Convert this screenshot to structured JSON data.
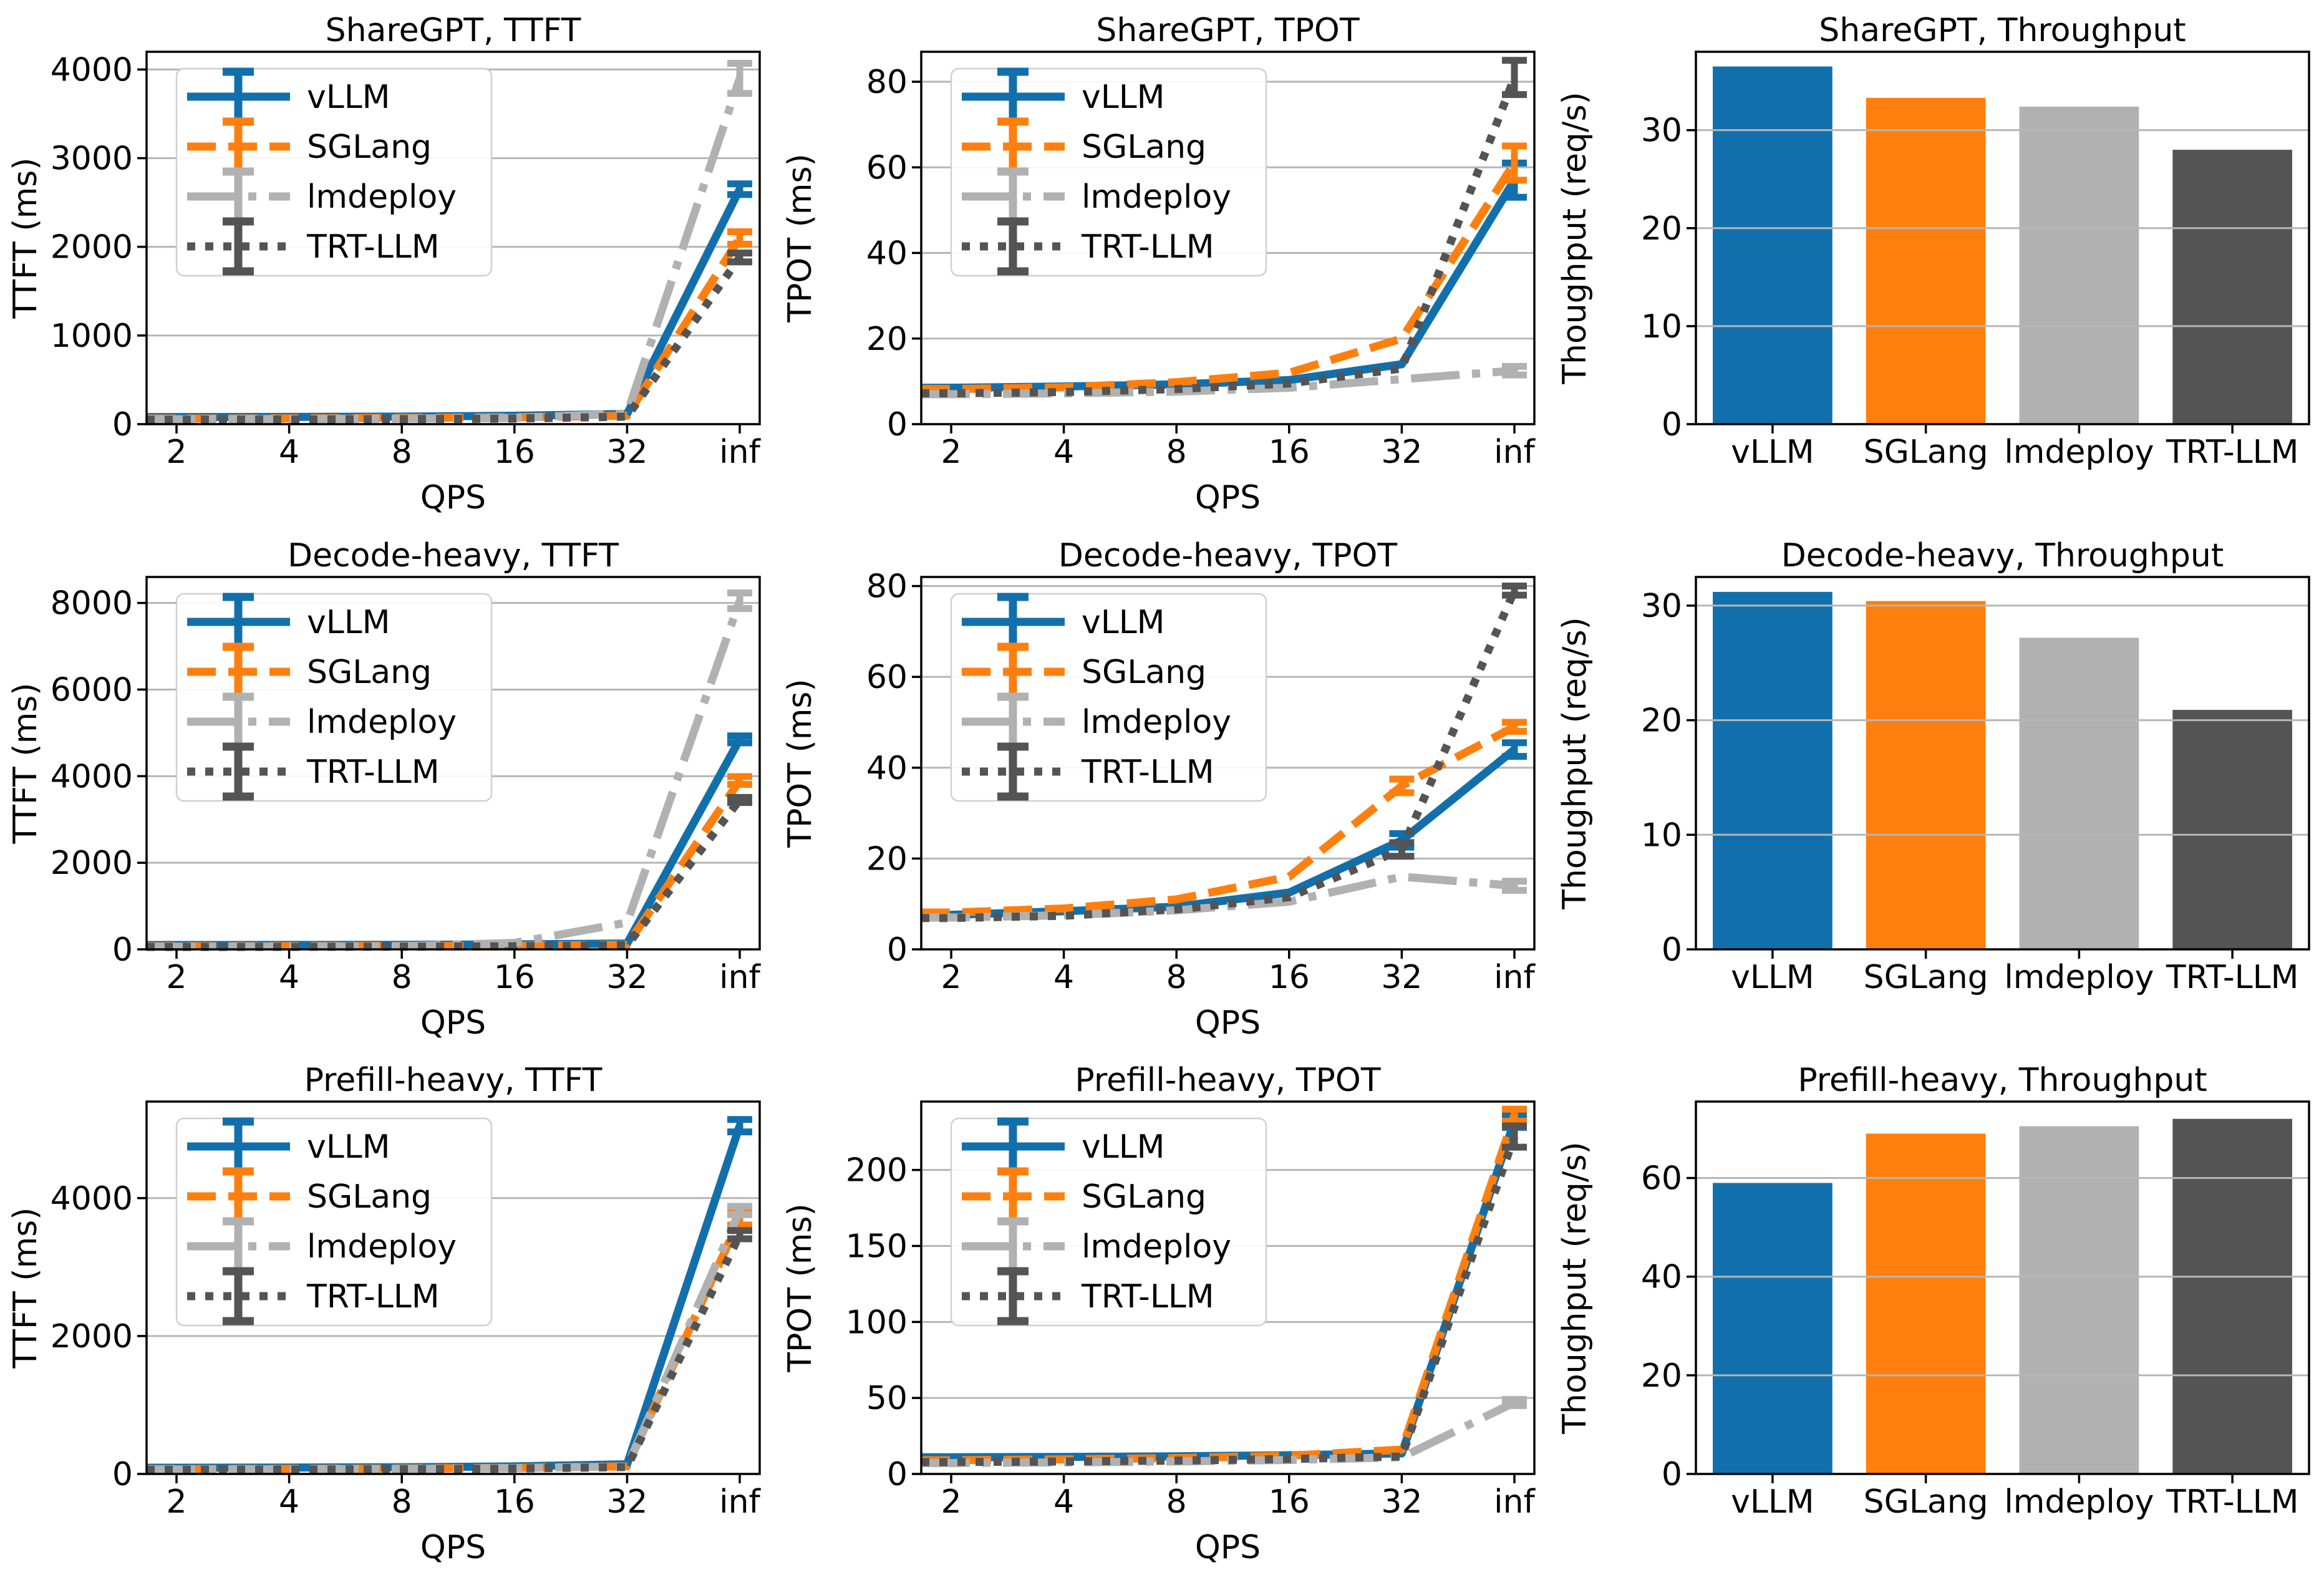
{
  "styles": {
    "series": [
      {
        "id": "vllm",
        "label": "vLLM",
        "color": "#1170ac",
        "dash": "solid"
      },
      {
        "id": "sglang",
        "label": "SGLang",
        "color": "#ff7f0e",
        "dash": "dashed"
      },
      {
        "id": "lmdeploy",
        "label": "lmdeploy",
        "color": "#b1b1b1",
        "dash": "dashdot"
      },
      {
        "id": "trtllm",
        "label": "TRT-LLM",
        "color": "#545454",
        "dash": "dotted"
      }
    ],
    "grid_color": "#b6b6b6",
    "spine_color": "#000000",
    "legend_border_color": "#d0d0d0"
  },
  "chart_data": [
    {
      "type": "line",
      "title": "ShareGPT, TTFT",
      "xlabel": "QPS",
      "ylabel": "TTFT (ms)",
      "categories": [
        "2",
        "4",
        "8",
        "16",
        "32",
        "inf"
      ],
      "yticks": [
        0,
        1000,
        2000,
        3000,
        4000
      ],
      "ylim": [
        0,
        4200
      ],
      "grid": true,
      "legend": true,
      "legend_position": "upper-left",
      "series": [
        {
          "name": "vLLM",
          "values": [
            80,
            82,
            85,
            95,
            115,
            2650
          ],
          "err": [
            0,
            0,
            0,
            0,
            0,
            60
          ]
        },
        {
          "name": "SGLang",
          "values": [
            62,
            65,
            70,
            78,
            95,
            2100
          ],
          "err": [
            0,
            0,
            0,
            0,
            0,
            70
          ]
        },
        {
          "name": "lmdeploy",
          "values": [
            55,
            58,
            62,
            70,
            120,
            3900
          ],
          "err": [
            0,
            0,
            0,
            0,
            0,
            170
          ]
        },
        {
          "name": "TRT-LLM",
          "values": [
            50,
            53,
            57,
            63,
            85,
            1880
          ],
          "err": [
            0,
            0,
            0,
            0,
            0,
            50
          ]
        }
      ]
    },
    {
      "type": "line",
      "title": "ShareGPT, TPOT",
      "xlabel": "QPS",
      "ylabel": "TPOT (ms)",
      "categories": [
        "2",
        "4",
        "8",
        "16",
        "32",
        "inf"
      ],
      "yticks": [
        0,
        20,
        40,
        60,
        80
      ],
      "ylim": [
        0,
        87
      ],
      "grid": true,
      "legend": true,
      "legend_position": "upper-left",
      "series": [
        {
          "name": "vLLM",
          "values": [
            8.5,
            8.8,
            9.3,
            10.3,
            14,
            57
          ],
          "err": [
            0,
            0,
            0,
            0,
            0,
            4
          ]
        },
        {
          "name": "SGLang",
          "values": [
            8.2,
            8.6,
            9.8,
            12,
            20,
            61
          ],
          "err": [
            0,
            0,
            0,
            0,
            0,
            4
          ]
        },
        {
          "name": "lmdeploy",
          "values": [
            7.0,
            7.2,
            7.6,
            8.5,
            10.5,
            12.5
          ],
          "err": [
            0,
            0,
            0,
            0,
            0,
            1
          ]
        },
        {
          "name": "TRT-LLM",
          "values": [
            7.2,
            7.5,
            8.2,
            9.5,
            13,
            81
          ],
          "err": [
            0,
            0,
            0,
            0,
            0,
            4
          ]
        }
      ]
    },
    {
      "type": "bar",
      "title": "ShareGPT, Throughput",
      "xlabel": "",
      "ylabel": "Thoughput (req/s)",
      "categories": [
        "vLLM",
        "SGLang",
        "lmdeploy",
        "TRT-LLM"
      ],
      "values": [
        36.5,
        33.3,
        32.4,
        28.0
      ],
      "yticks": [
        0,
        10,
        20,
        30
      ],
      "ylim": [
        0,
        38
      ],
      "grid": true,
      "legend": false
    },
    {
      "type": "line",
      "title": "Decode-heavy, TTFT",
      "xlabel": "QPS",
      "ylabel": "TTFT (ms)",
      "categories": [
        "2",
        "4",
        "8",
        "16",
        "32",
        "inf"
      ],
      "yticks": [
        0,
        2000,
        4000,
        6000,
        8000
      ],
      "ylim": [
        0,
        8600
      ],
      "grid": true,
      "legend": true,
      "legend_position": "upper-left",
      "series": [
        {
          "name": "vLLM",
          "values": [
            100,
            102,
            105,
            115,
            135,
            4850
          ],
          "err": [
            0,
            0,
            0,
            0,
            0,
            80
          ]
        },
        {
          "name": "SGLang",
          "values": [
            70,
            74,
            78,
            85,
            105,
            3900
          ],
          "err": [
            0,
            0,
            0,
            0,
            0,
            90
          ]
        },
        {
          "name": "lmdeploy",
          "values": [
            62,
            66,
            72,
            150,
            620,
            8050
          ],
          "err": [
            0,
            0,
            0,
            0,
            0,
            180
          ]
        },
        {
          "name": "TRT-LLM",
          "values": [
            55,
            58,
            62,
            70,
            95,
            3450
          ],
          "err": [
            0,
            0,
            0,
            0,
            0,
            60
          ]
        }
      ]
    },
    {
      "type": "line",
      "title": "Decode-heavy, TPOT",
      "xlabel": "QPS",
      "ylabel": "TPOT (ms)",
      "categories": [
        "2",
        "4",
        "8",
        "16",
        "32",
        "inf"
      ],
      "yticks": [
        0,
        20,
        40,
        60,
        80
      ],
      "ylim": [
        0,
        82
      ],
      "grid": true,
      "legend": true,
      "legend_position": "upper-left",
      "series": [
        {
          "name": "vLLM",
          "values": [
            7.6,
            8.4,
            9.4,
            12.5,
            24,
            44
          ],
          "err": [
            0,
            0,
            0,
            0,
            1.5,
            1.5
          ]
        },
        {
          "name": "SGLang",
          "values": [
            8.1,
            9.0,
            11,
            16,
            36,
            49
          ],
          "err": [
            0,
            0,
            0,
            0,
            1.5,
            1
          ]
        },
        {
          "name": "lmdeploy",
          "values": [
            7.0,
            7.5,
            8.6,
            10.5,
            16,
            14
          ],
          "err": [
            0,
            0,
            0,
            0,
            0,
            1
          ]
        },
        {
          "name": "TRT-LLM",
          "values": [
            6.9,
            7.4,
            8.8,
            11.5,
            22,
            79
          ],
          "err": [
            0,
            0,
            0,
            0,
            1.5,
            1
          ]
        }
      ]
    },
    {
      "type": "bar",
      "title": "Decode-heavy, Throughput",
      "xlabel": "",
      "ylabel": "Thoughput (req/s)",
      "categories": [
        "vLLM",
        "SGLang",
        "lmdeploy",
        "TRT-LLM"
      ],
      "values": [
        31.2,
        30.4,
        27.2,
        20.9
      ],
      "yticks": [
        0,
        10,
        20,
        30
      ],
      "ylim": [
        0,
        32.5
      ],
      "grid": true,
      "legend": false
    },
    {
      "type": "line",
      "title": "Prefill-heavy, TTFT",
      "xlabel": "QPS",
      "ylabel": "TTFT (ms)",
      "categories": [
        "2",
        "4",
        "8",
        "16",
        "32",
        "inf"
      ],
      "yticks": [
        0,
        2000,
        4000
      ],
      "ylim": [
        0,
        5400
      ],
      "grid": true,
      "legend": true,
      "legend_position": "upper-left",
      "series": [
        {
          "name": "vLLM",
          "values": [
            90,
            93,
            97,
            110,
            140,
            5050
          ],
          "err": [
            0,
            0,
            0,
            0,
            0,
            90
          ]
        },
        {
          "name": "SGLang",
          "values": [
            70,
            73,
            78,
            88,
            110,
            3700
          ],
          "err": [
            0,
            0,
            0,
            0,
            0,
            90
          ]
        },
        {
          "name": "lmdeploy",
          "values": [
            65,
            68,
            73,
            85,
            108,
            3820
          ],
          "err": [
            0,
            0,
            0,
            0,
            0,
            60
          ]
        },
        {
          "name": "TRT-LLM",
          "values": [
            60,
            63,
            68,
            78,
            100,
            3470
          ],
          "err": [
            0,
            0,
            0,
            0,
            0,
            60
          ]
        }
      ]
    },
    {
      "type": "line",
      "title": "Prefill-heavy, TPOT",
      "xlabel": "QPS",
      "ylabel": "TPOT (ms)",
      "categories": [
        "2",
        "4",
        "8",
        "16",
        "32",
        "inf"
      ],
      "yticks": [
        0,
        50,
        100,
        150,
        200
      ],
      "ylim": [
        0,
        245
      ],
      "grid": true,
      "legend": true,
      "legend_position": "upper-left",
      "series": [
        {
          "name": "vLLM",
          "values": [
            11,
            11.2,
            11.6,
            12.3,
            13.5,
            232
          ],
          "err": [
            0,
            0,
            0,
            0,
            0,
            4
          ]
        },
        {
          "name": "SGLang",
          "values": [
            9,
            9.6,
            10.4,
            12,
            16,
            236
          ],
          "err": [
            0,
            0,
            0,
            0,
            0,
            4
          ]
        },
        {
          "name": "lmdeploy",
          "values": [
            7.2,
            7.6,
            8.2,
            9.2,
            11,
            47
          ],
          "err": [
            0,
            0,
            0,
            0,
            0,
            2
          ]
        },
        {
          "name": "TRT-LLM",
          "values": [
            7.8,
            8.2,
            8.8,
            9.8,
            11.5,
            222
          ],
          "err": [
            0,
            0,
            0,
            0,
            0,
            7
          ]
        }
      ]
    },
    {
      "type": "bar",
      "title": "Prefill-heavy, Throughput",
      "xlabel": "",
      "ylabel": "Thoughput (req/s)",
      "categories": [
        "vLLM",
        "SGLang",
        "lmdeploy",
        "TRT-LLM"
      ],
      "values": [
        59.0,
        69.0,
        70.5,
        72.0
      ],
      "yticks": [
        0,
        20,
        40,
        60
      ],
      "ylim": [
        0,
        75.5
      ],
      "grid": true,
      "legend": false
    }
  ]
}
